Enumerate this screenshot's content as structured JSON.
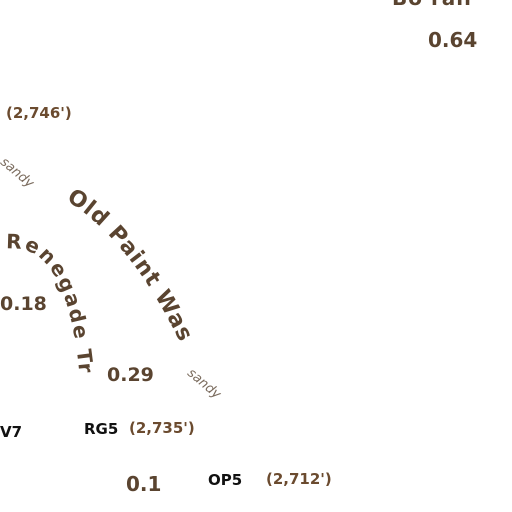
{
  "colors": {
    "trail_text": "#5a4430",
    "waypoint_text": "#111111",
    "surface_text": "#7a6b5d",
    "background": "#ffffff"
  },
  "trails": [
    {
      "name": "Old Paint Wash"
    },
    {
      "name": "Renegade Trail"
    },
    {
      "name": "Bo… Trail",
      "partial_visible_text": "Bo   rail"
    }
  ],
  "surface_labels": [
    "sandy",
    "sandy"
  ],
  "distances": [
    "0.64",
    "0.18",
    "0.29",
    "0.1"
  ],
  "elevations": [
    "(2,746')",
    "(2,735')",
    "(2,712')"
  ],
  "waypoints": [
    "V7",
    "RG5",
    "OP5"
  ]
}
